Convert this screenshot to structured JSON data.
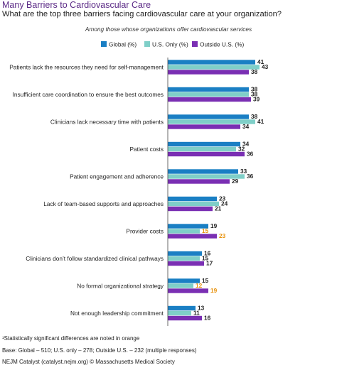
{
  "header": {
    "title": "Many Barriers to Cardiovascular Care",
    "subtitle": "What are the top three barriers facing cardiovascular care at your organization?",
    "subhead": "Among those whose organizations offer cardiovascular services"
  },
  "colors": {
    "global": "#1a7fc4",
    "us_only": "#7fcfc8",
    "outside_us": "#7a2fb3",
    "orange": "#e8920c",
    "title": "#5b2a86"
  },
  "chart_data": {
    "type": "bar",
    "orientation": "horizontal",
    "legend_position": "top",
    "grid": false,
    "xlim": [
      0,
      45
    ],
    "categories": [
      "Patients lack the resources they need for self-management",
      "Insufficient care coordination to ensure the best outcomes",
      "Clinicians lack necessary time with patients",
      "Patient costs",
      "Patient engagement and adherence",
      "Lack of team-based supports and approaches",
      "Provider costs",
      "Clinicians don’t follow standardized clinical pathways",
      "No formal organizational strategy",
      "Not enough leadership commitment"
    ],
    "series": [
      {
        "name": "Global (%)",
        "values": [
          41,
          38,
          38,
          34,
          33,
          23,
          19,
          16,
          15,
          13
        ],
        "highlight": [
          false,
          false,
          false,
          false,
          false,
          false,
          false,
          false,
          false,
          false
        ]
      },
      {
        "name": "U.S. Only (%)",
        "values": [
          43,
          38,
          41,
          32,
          36,
          24,
          15,
          15,
          12,
          11
        ],
        "highlight": [
          false,
          false,
          false,
          false,
          false,
          false,
          true,
          false,
          true,
          false
        ]
      },
      {
        "name": "Outside U.S. (%)",
        "values": [
          38,
          39,
          34,
          36,
          29,
          21,
          23,
          17,
          19,
          16
        ],
        "highlight": [
          false,
          false,
          false,
          false,
          false,
          false,
          true,
          false,
          true,
          false
        ]
      }
    ]
  },
  "footnotes": {
    "note": "¹Statistically significant differences are noted in orange",
    "base": "Base: Global – 510; U.S. only – 278; Outside U.S. – 232 (multiple responses)",
    "source": "NEJM Catalyst (catalyst.nejm.org) © Massachusetts Medical Society"
  }
}
